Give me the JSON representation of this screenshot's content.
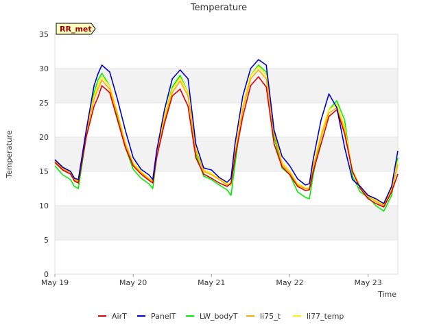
{
  "chart_data": {
    "type": "line",
    "title": "Temperature",
    "xlabel": "Time",
    "ylabel": "Temperature",
    "station_tag": "RR_met",
    "xlim": [
      0,
      4.38
    ],
    "ylim": [
      0,
      35
    ],
    "y_ticks": [
      0,
      5,
      10,
      15,
      20,
      25,
      30,
      35
    ],
    "x_ticks": [
      {
        "value": 0,
        "label": "May 19"
      },
      {
        "value": 1,
        "label": "May 20"
      },
      {
        "value": 2,
        "label": "May 21"
      },
      {
        "value": 3,
        "label": "May 22"
      },
      {
        "value": 4,
        "label": "May 23"
      }
    ],
    "grid": "horizontal bands",
    "legend": "bottom",
    "x": [
      0.0,
      0.1,
      0.2,
      0.25,
      0.3,
      0.4,
      0.5,
      0.55,
      0.6,
      0.7,
      0.8,
      0.9,
      1.0,
      1.1,
      1.2,
      1.25,
      1.3,
      1.4,
      1.5,
      1.6,
      1.7,
      1.8,
      1.9,
      2.0,
      2.1,
      2.2,
      2.25,
      2.3,
      2.4,
      2.5,
      2.6,
      2.7,
      2.8,
      2.9,
      3.0,
      3.1,
      3.2,
      3.25,
      3.3,
      3.4,
      3.5,
      3.6,
      3.7,
      3.8,
      3.9,
      4.0,
      4.1,
      4.2,
      4.3,
      4.38
    ],
    "series": [
      {
        "name": "AirT",
        "color": "#dd0000",
        "values": [
          16.3,
          15.2,
          14.6,
          13.6,
          13.3,
          20.0,
          24.5,
          25.8,
          27.5,
          26.5,
          22.5,
          18.5,
          15.8,
          14.6,
          13.7,
          13.3,
          17.0,
          22.0,
          26.0,
          27.0,
          24.5,
          17.0,
          14.6,
          14.0,
          13.3,
          12.8,
          13.3,
          17.0,
          23.0,
          27.5,
          28.8,
          27.3,
          19.0,
          15.7,
          14.5,
          12.8,
          12.2,
          12.3,
          15.0,
          19.0,
          23.0,
          24.0,
          20.5,
          15.0,
          12.5,
          11.0,
          10.3,
          9.8,
          12.0,
          14.6
        ]
      },
      {
        "name": "PanelT",
        "color": "#0000cc",
        "values": [
          16.7,
          15.6,
          15.0,
          14.0,
          13.8,
          21.0,
          27.5,
          29.2,
          30.5,
          29.5,
          25.5,
          21.0,
          17.0,
          15.3,
          14.5,
          13.8,
          18.0,
          24.0,
          28.5,
          29.8,
          28.5,
          19.0,
          15.5,
          15.2,
          14.1,
          13.4,
          14.0,
          19.0,
          26.0,
          30.0,
          31.3,
          30.5,
          21.0,
          17.2,
          15.8,
          13.9,
          13.0,
          13.2,
          16.8,
          22.5,
          26.3,
          24.3,
          18.5,
          13.8,
          12.8,
          11.5,
          11.0,
          10.3,
          12.8,
          18.0
        ]
      },
      {
        "name": "LW_bodyT",
        "color": "#00ee00",
        "values": [
          15.8,
          14.5,
          13.8,
          12.8,
          12.5,
          20.0,
          26.5,
          28.3,
          29.3,
          27.5,
          23.0,
          18.5,
          15.3,
          14.0,
          13.2,
          12.5,
          17.0,
          23.0,
          27.3,
          29.0,
          26.5,
          17.5,
          14.3,
          13.8,
          13.0,
          12.3,
          11.5,
          16.0,
          24.5,
          29.0,
          30.5,
          29.5,
          20.0,
          15.5,
          14.5,
          12.0,
          11.2,
          11.0,
          14.5,
          20.0,
          24.0,
          25.3,
          22.5,
          14.3,
          12.0,
          11.2,
          10.0,
          9.2,
          11.5,
          17.0
        ]
      },
      {
        "name": "li75_t",
        "color": "#ffaa00",
        "values": [
          16.5,
          15.4,
          14.8,
          13.8,
          13.5,
          20.5,
          25.5,
          27.0,
          28.3,
          27.0,
          23.3,
          19.0,
          16.0,
          14.8,
          13.9,
          13.5,
          17.5,
          22.5,
          26.5,
          28.2,
          26.0,
          18.0,
          15.0,
          14.5,
          13.8,
          13.0,
          13.0,
          17.5,
          24.0,
          28.5,
          29.8,
          28.5,
          20.5,
          16.0,
          14.8,
          13.0,
          12.5,
          12.4,
          15.5,
          20.0,
          23.5,
          24.3,
          21.0,
          15.0,
          12.6,
          11.3,
          10.6,
          10.0,
          12.2,
          16.0
        ]
      },
      {
        "name": "li77_temp",
        "color": "#ffee00",
        "values": [
          16.6,
          15.5,
          14.9,
          13.9,
          13.6,
          20.8,
          26.0,
          27.5,
          28.8,
          27.5,
          23.5,
          19.2,
          16.2,
          15.0,
          14.0,
          13.6,
          17.8,
          23.0,
          27.0,
          28.7,
          26.5,
          18.3,
          15.2,
          14.7,
          13.9,
          13.2,
          13.2,
          17.8,
          24.5,
          29.0,
          30.3,
          29.0,
          20.8,
          16.3,
          15.0,
          13.2,
          12.6,
          12.5,
          15.8,
          20.5,
          24.0,
          24.8,
          21.5,
          15.2,
          12.8,
          11.5,
          10.8,
          10.2,
          12.4,
          16.5
        ]
      }
    ]
  }
}
